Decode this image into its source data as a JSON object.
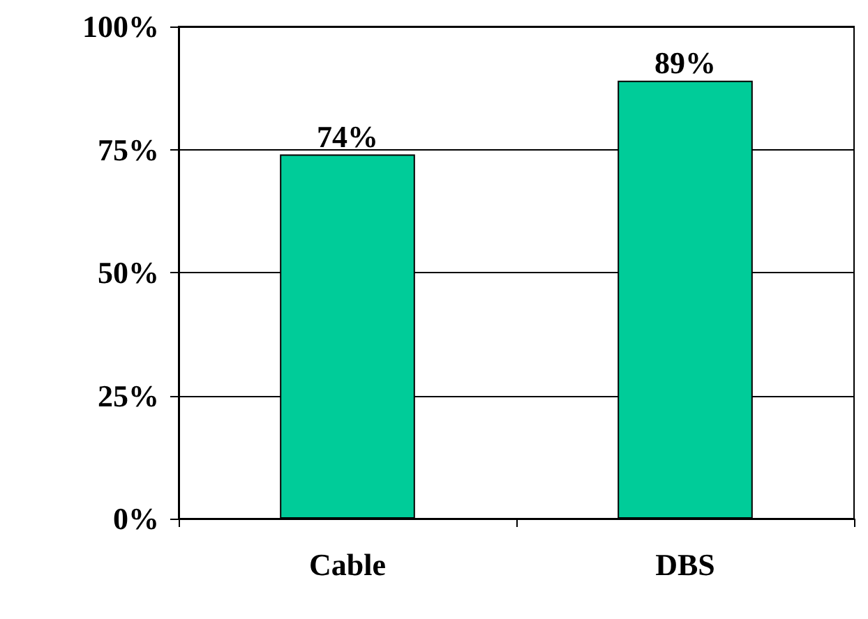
{
  "chart_data": {
    "type": "bar",
    "categories": [
      "Cable",
      "DBS"
    ],
    "values": [
      74,
      89
    ],
    "value_labels": [
      "74%",
      "89%"
    ],
    "color": "#00cc99",
    "ylim": [
      0,
      100
    ],
    "yticks": [
      {
        "value": 0,
        "label": "0%"
      },
      {
        "value": 25,
        "label": "25%"
      },
      {
        "value": 50,
        "label": "50%"
      },
      {
        "value": 75,
        "label": "75%"
      },
      {
        "value": 100,
        "label": "100%"
      }
    ],
    "grid": "y"
  }
}
